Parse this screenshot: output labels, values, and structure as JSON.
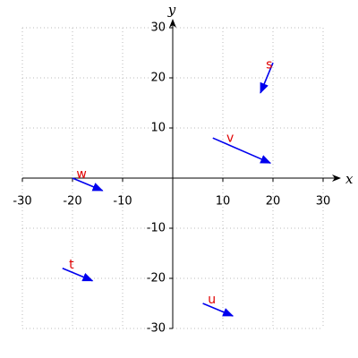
{
  "chart_data": {
    "type": "vector",
    "x_label": "x",
    "y_label": "y",
    "xlim": [
      -30,
      30
    ],
    "ylim": [
      -30,
      30
    ],
    "xticks": [
      -30,
      -20,
      -10,
      10,
      20,
      30
    ],
    "yticks": [
      -30,
      -20,
      -10,
      10,
      20,
      30
    ],
    "grid": true,
    "color": "#0000ee",
    "label_color": "#e00000",
    "vectors": [
      {
        "name": "s",
        "x": 20,
        "y": 23,
        "dx": -2.5,
        "dy": -6
      },
      {
        "name": "v",
        "x": 8,
        "y": 8,
        "dx": 11.5,
        "dy": -5
      },
      {
        "name": "w",
        "x": -20,
        "y": 0,
        "dx": 6,
        "dy": -2.5
      },
      {
        "name": "t",
        "x": -22,
        "y": -18,
        "dx": 6,
        "dy": -2.5
      },
      {
        "name": "u",
        "x": 6,
        "y": -25,
        "dx": 6,
        "dy": -2.5
      }
    ]
  }
}
